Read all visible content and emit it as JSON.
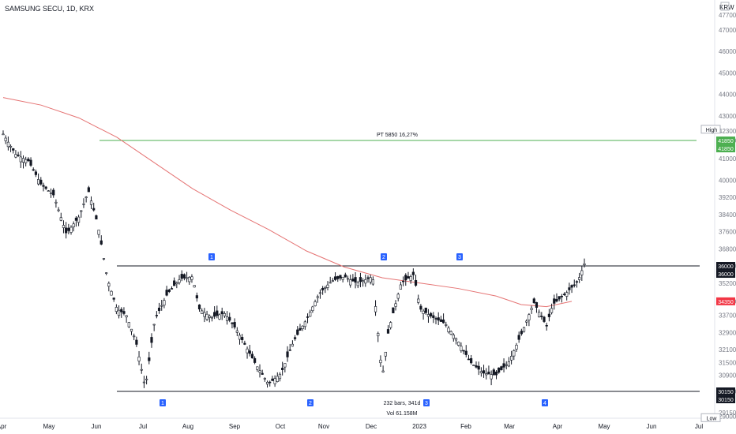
{
  "header": {
    "title": "SAMSUNG SECU, 1D, KRX"
  },
  "axis": {
    "currency": "KRW"
  },
  "chart_data": {
    "type": "candlestick",
    "y_ticks": [
      47700,
      47000,
      46000,
      45000,
      44000,
      43000,
      42300,
      41850,
      41000,
      40000,
      39200,
      38400,
      37600,
      36800,
      36000,
      35200,
      34350,
      33700,
      32900,
      32100,
      31500,
      30900,
      30150,
      29150,
      29000
    ],
    "y_tick_labels": [
      "47700",
      "47000",
      "46000",
      "45000",
      "44000",
      "43000",
      "42300",
      "41850",
      "41000",
      "40000",
      "39200",
      "38400",
      "37600",
      "36800",
      "36000",
      "35200",
      "34350",
      "33700",
      "32900",
      "32100",
      "31500",
      "30900",
      "30150",
      "29150",
      "29000"
    ],
    "ylim": [
      28900,
      48400
    ],
    "x_ticks": [
      "Apr",
      "May",
      "Jun",
      "Jul",
      "Aug",
      "Sep",
      "Oct",
      "Nov",
      "Dec",
      "2023",
      "Feb",
      "Mar",
      "Apr",
      "May",
      "Jun",
      "Jul"
    ],
    "price_tags": [
      {
        "label": "High",
        "value": 42300,
        "style": "plain"
      },
      {
        "label": "41850",
        "value": 41850,
        "style": "green"
      },
      {
        "label": "41850",
        "value": 41850,
        "style": "green2"
      },
      {
        "label": "36000",
        "value": 36000,
        "style": "black"
      },
      {
        "label": "36000",
        "value": 36000,
        "style": "black2"
      },
      {
        "label": "34350",
        "value": 34350,
        "style": "red"
      },
      {
        "label": "30150",
        "value": 30150,
        "style": "black"
      },
      {
        "label": "30150",
        "value": 30150,
        "style": "black2"
      },
      {
        "label": "Low",
        "value": 29000,
        "style": "plain"
      }
    ],
    "lines": {
      "target": {
        "value": 41850,
        "label": "PT 5850 16,27%",
        "color": "#4caf50"
      },
      "resistance": {
        "value": 36000,
        "color": "#131722"
      },
      "support": {
        "value": 30150,
        "color": "#131722"
      }
    },
    "markers_top": [
      "1",
      "2",
      "3"
    ],
    "markers_bottom": [
      "1",
      "2",
      "3",
      "4"
    ],
    "stats": {
      "bars": "232 bars, 341d",
      "vol": "Vol 61.158M"
    },
    "ma_color": "#e57373",
    "ma": [
      [
        0.0,
        43850
      ],
      [
        0.06,
        43500
      ],
      [
        0.12,
        42900
      ],
      [
        0.18,
        42000
      ],
      [
        0.24,
        40800
      ],
      [
        0.3,
        39600
      ],
      [
        0.36,
        38600
      ],
      [
        0.42,
        37700
      ],
      [
        0.48,
        36700
      ],
      [
        0.54,
        35950
      ],
      [
        0.6,
        35450
      ],
      [
        0.66,
        35200
      ],
      [
        0.72,
        34950
      ],
      [
        0.78,
        34600
      ],
      [
        0.82,
        34200
      ],
      [
        0.86,
        34100
      ],
      [
        0.9,
        34350
      ]
    ],
    "price": [
      [
        0.0,
        42150
      ],
      [
        0.02,
        41200
      ],
      [
        0.04,
        40900
      ],
      [
        0.06,
        39800
      ],
      [
        0.08,
        39300
      ],
      [
        0.1,
        37500
      ],
      [
        0.12,
        38300
      ],
      [
        0.135,
        39500
      ],
      [
        0.15,
        37900
      ],
      [
        0.165,
        35400
      ],
      [
        0.18,
        34000
      ],
      [
        0.195,
        33700
      ],
      [
        0.21,
        32500
      ],
      [
        0.225,
        30300
      ],
      [
        0.24,
        33500
      ],
      [
        0.26,
        34700
      ],
      [
        0.28,
        35400
      ],
      [
        0.3,
        35500
      ],
      [
        0.31,
        34000
      ],
      [
        0.33,
        33600
      ],
      [
        0.35,
        33800
      ],
      [
        0.37,
        33000
      ],
      [
        0.385,
        32200
      ],
      [
        0.4,
        31400
      ],
      [
        0.42,
        30500
      ],
      [
        0.44,
        31000
      ],
      [
        0.46,
        32500
      ],
      [
        0.48,
        33500
      ],
      [
        0.5,
        34700
      ],
      [
        0.52,
        35300
      ],
      [
        0.54,
        35500
      ],
      [
        0.56,
        35200
      ],
      [
        0.585,
        35500
      ],
      [
        0.6,
        30800
      ],
      [
        0.61,
        33000
      ],
      [
        0.63,
        35200
      ],
      [
        0.65,
        35600
      ],
      [
        0.66,
        34000
      ],
      [
        0.68,
        33600
      ],
      [
        0.7,
        33300
      ],
      [
        0.72,
        32500
      ],
      [
        0.74,
        31500
      ],
      [
        0.76,
        31000
      ],
      [
        0.78,
        30900
      ],
      [
        0.8,
        31500
      ],
      [
        0.82,
        32800
      ],
      [
        0.84,
        34300
      ],
      [
        0.86,
        33200
      ],
      [
        0.87,
        34200
      ],
      [
        0.89,
        34700
      ],
      [
        0.91,
        35300
      ],
      [
        0.92,
        36100
      ]
    ]
  }
}
